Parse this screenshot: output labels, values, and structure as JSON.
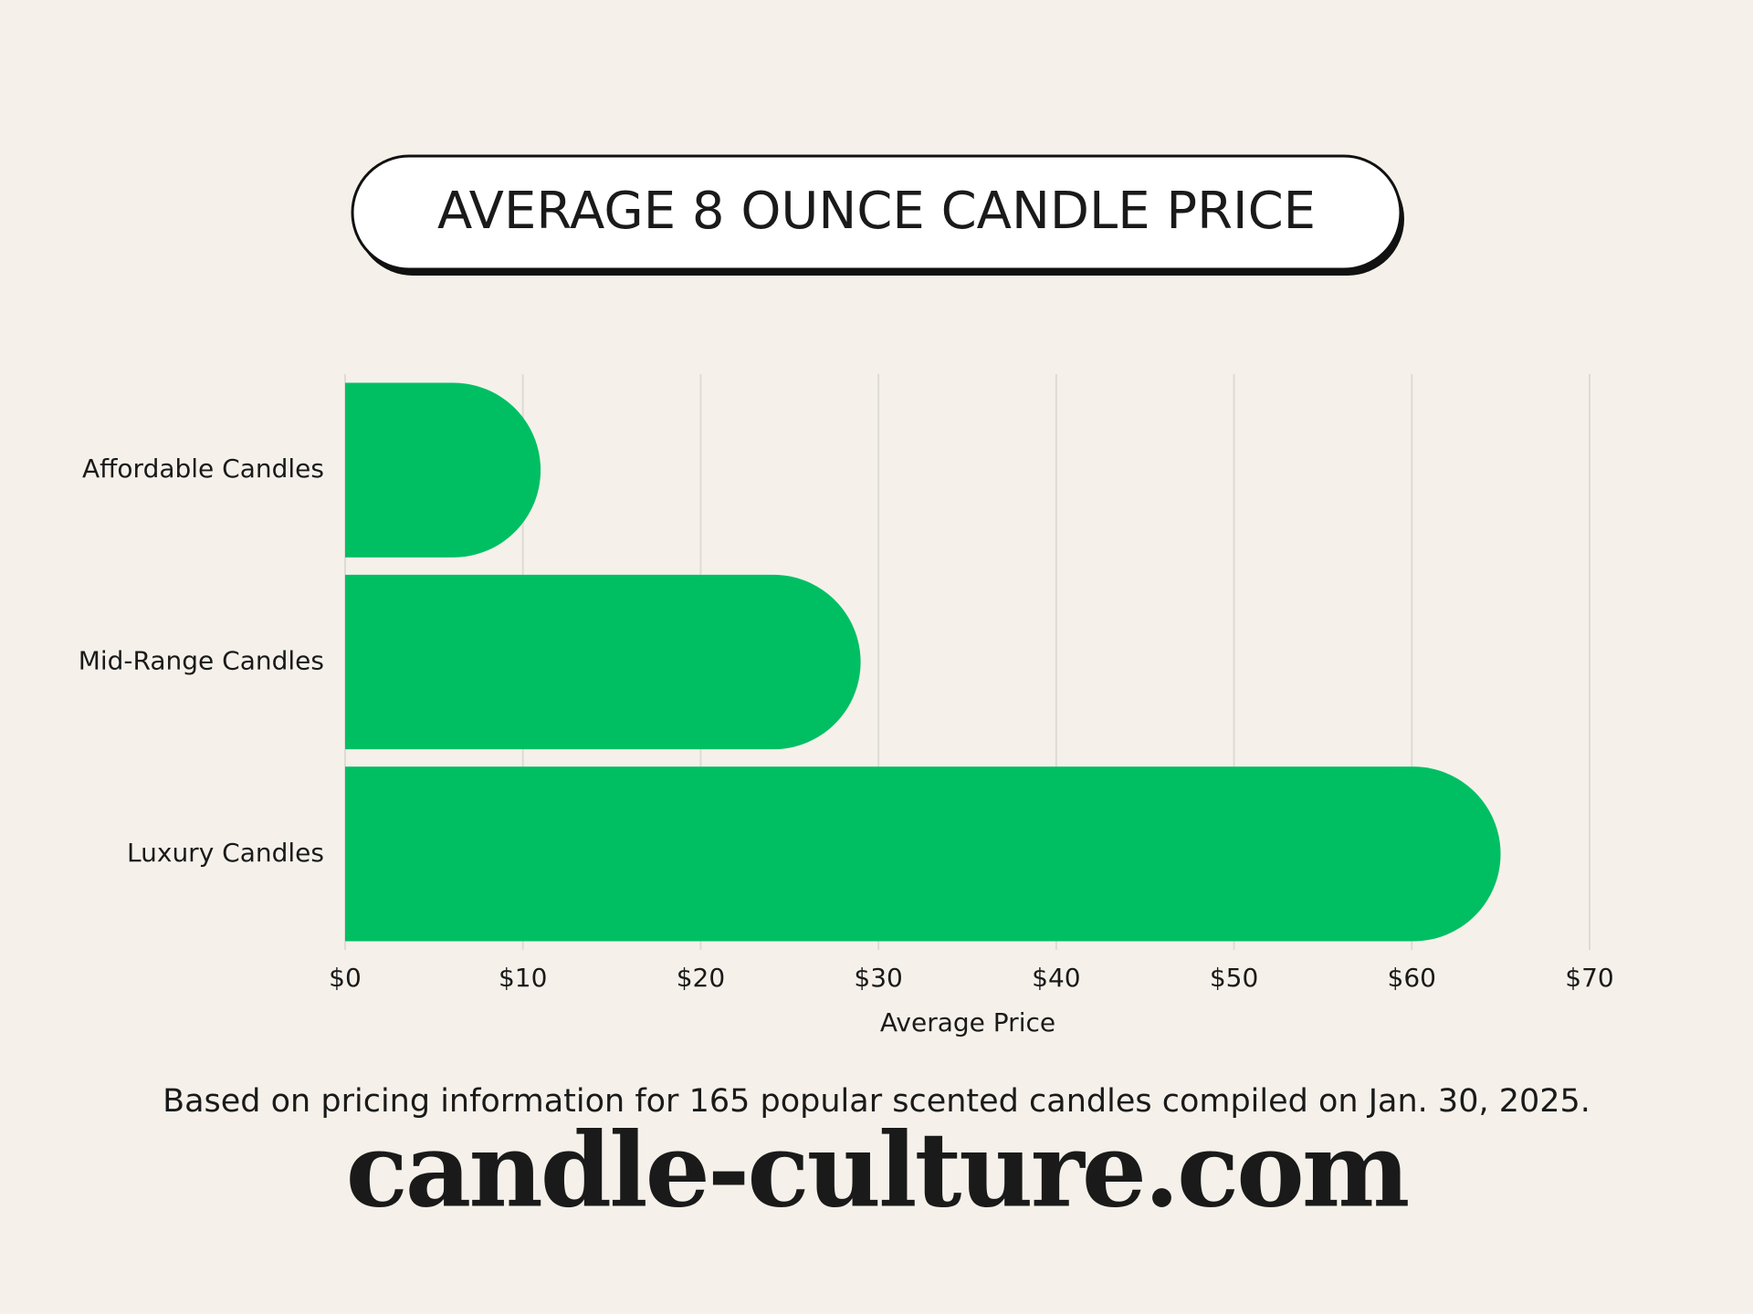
{
  "chart_data": {
    "type": "bar",
    "orientation": "horizontal",
    "title": "AVERAGE 8 OUNCE CANDLE PRICE",
    "categories": [
      "Affordable Candles",
      "Mid-Range Candles",
      "Luxury Candles"
    ],
    "values": [
      11,
      29,
      65
    ],
    "color": "#00bf63",
    "xlabel": "Average Price",
    "xlim": [
      0,
      70
    ],
    "xticks": [
      {
        "value": 0,
        "label": "$0"
      },
      {
        "value": 10,
        "label": "$10"
      },
      {
        "value": 20,
        "label": "$20"
      },
      {
        "value": 30,
        "label": "$30"
      },
      {
        "value": 40,
        "label": "$40"
      },
      {
        "value": 50,
        "label": "$50"
      },
      {
        "value": 60,
        "label": "$60"
      },
      {
        "value": 70,
        "label": "$70"
      }
    ],
    "grid": true,
    "note": "Based on pricing information for 165 popular scented candles compiled on Jan. 30, 2025.",
    "source": "candle-culture.com"
  }
}
